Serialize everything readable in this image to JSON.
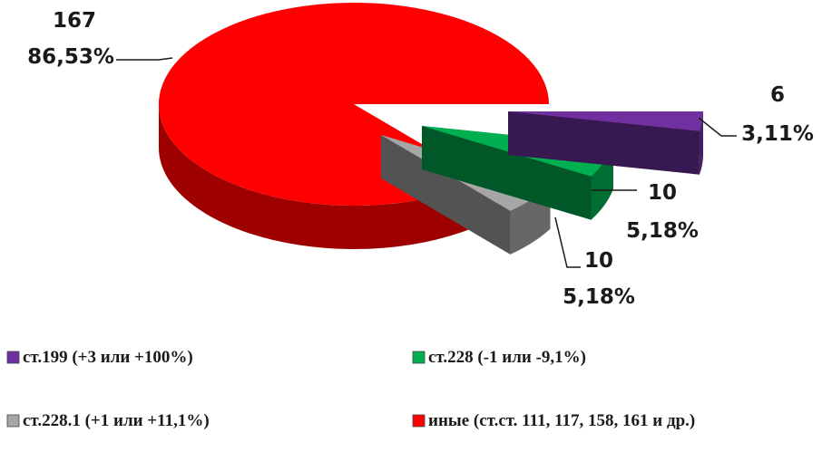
{
  "chart_data": {
    "type": "pie",
    "series": [
      {
        "name": "ст.199 (+3 или +100%)",
        "value": 6,
        "percent": "3,11%",
        "color": "#7030a0",
        "exploded": true
      },
      {
        "name": "ст.228 (-1 или -9,1%)",
        "value": 10,
        "percent": "5,18%",
        "color": "#00b050",
        "exploded": true
      },
      {
        "name": "ст.228.1 (+1 или +11,1%)",
        "value": 10,
        "percent": "5,18%",
        "color": "#a6a6a6",
        "exploded": true
      },
      {
        "name": "иные (ст.ст. 111, 117, 158, 161 и др.)",
        "value": 167,
        "percent": "86,53%",
        "color": "#ff0000",
        "exploded": false
      }
    ],
    "legend_position": "bottom",
    "three_d": true
  }
}
